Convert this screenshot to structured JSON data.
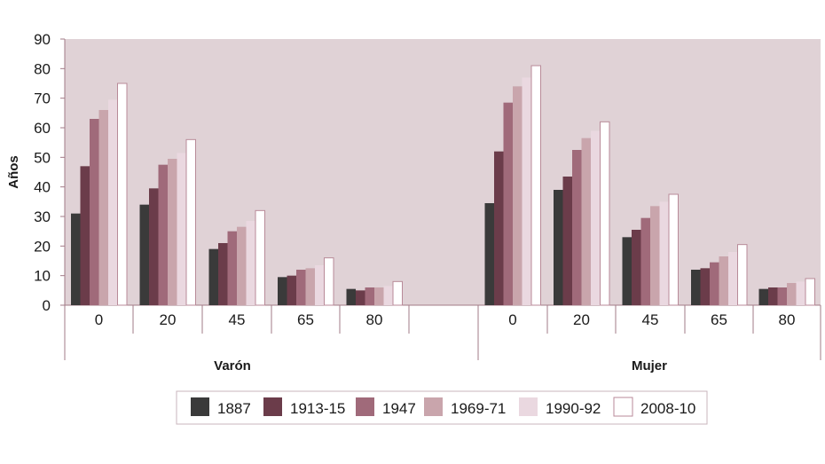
{
  "chart_data": {
    "type": "bar",
    "title": "",
    "ylabel": "Años",
    "ylim": [
      0,
      90
    ],
    "yticks": [
      0,
      10,
      20,
      30,
      40,
      50,
      60,
      70,
      80,
      90
    ],
    "groups": [
      {
        "label": "Varón",
        "categories": [
          "0",
          "20",
          "45",
          "65",
          "80"
        ],
        "series": [
          {
            "name": "1887",
            "values": [
              31,
              34,
              19,
              9.5,
              5.5
            ]
          },
          {
            "name": "1913-15",
            "values": [
              47,
              39.5,
              21,
              10,
              5
            ]
          },
          {
            "name": "1947",
            "values": [
              63,
              47.5,
              25,
              12,
              6
            ]
          },
          {
            "name": "1969-71",
            "values": [
              66,
              49.5,
              26.5,
              12.5,
              6
            ]
          },
          {
            "name": "1990-92",
            "values": [
              69.5,
              51.5,
              28.5,
              13.5,
              6.5
            ]
          },
          {
            "name": "2008-10",
            "values": [
              75,
              56,
              32,
              16,
              8
            ]
          }
        ]
      },
      {
        "label": "Mujer",
        "categories": [
          "0",
          "20",
          "45",
          "65",
          "80"
        ],
        "series": [
          {
            "name": "1887",
            "values": [
              34.5,
              39,
              23,
              12,
              5.5
            ]
          },
          {
            "name": "1913-15",
            "values": [
              52,
              43.5,
              25.5,
              12.5,
              6
            ]
          },
          {
            "name": "1947",
            "values": [
              68.5,
              52.5,
              29.5,
              14.5,
              6
            ]
          },
          {
            "name": "1969-71",
            "values": [
              74,
              56.5,
              33.5,
              16.5,
              7.5
            ]
          },
          {
            "name": "1990-92",
            "values": [
              77,
              59,
              35,
              18,
              8
            ]
          },
          {
            "name": "2008-10",
            "values": [
              81,
              62,
              37.5,
              20.5,
              9
            ]
          }
        ]
      }
    ],
    "legend": {
      "position": "bottom",
      "items": [
        {
          "name": "1887",
          "color": "#3a3a3a"
        },
        {
          "name": "1913-15",
          "color": "#6b3c4a"
        },
        {
          "name": "1947",
          "color": "#a06a7a"
        },
        {
          "name": "1969-71",
          "color": "#c9a5ac"
        },
        {
          "name": "1990-92",
          "color": "#ead8e0"
        },
        {
          "name": "2008-10",
          "color": "#ffffff"
        }
      ]
    },
    "colors": {
      "plot_background": "#e0d2d6",
      "axis": "#a27b87",
      "grid": "none"
    }
  }
}
